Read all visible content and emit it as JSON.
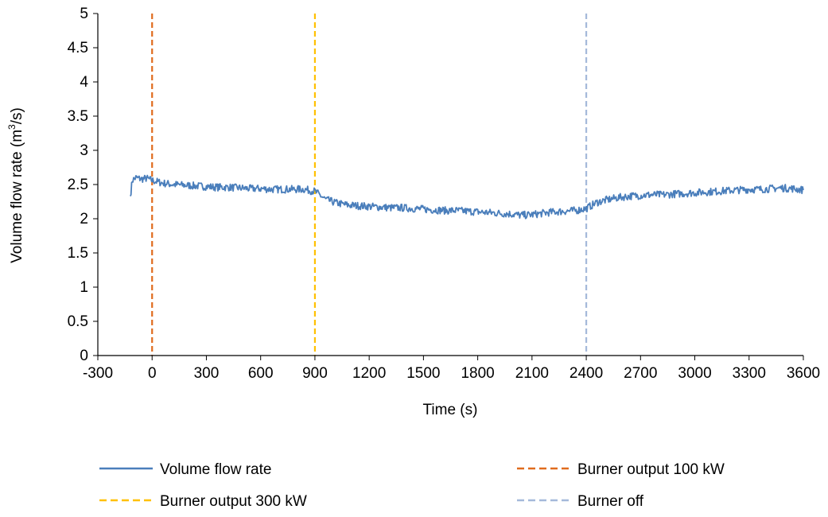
{
  "chart_data": {
    "type": "line",
    "xlabel": "Time (s)",
    "ylabel_prefix": "Volume flow rate (m",
    "ylabel_sup": "3",
    "ylabel_suffix": "/s)",
    "xlim": [
      -300,
      3600
    ],
    "ylim": [
      0,
      5
    ],
    "x_ticks": [
      -300,
      0,
      300,
      600,
      900,
      1200,
      1500,
      1800,
      2100,
      2400,
      2700,
      3000,
      3300,
      3600
    ],
    "y_ticks": [
      "0",
      "0.5",
      "1",
      "1.5",
      "2",
      "2.5",
      "3",
      "3.5",
      "4",
      "4.5",
      "5"
    ],
    "grid": false,
    "legend_position": "bottom",
    "series": [
      {
        "name": "Volume flow rate",
        "color": "#4a7ebb",
        "points": [
          [
            -120,
            2.33
          ],
          [
            -110,
            2.56
          ],
          [
            -90,
            2.6
          ],
          [
            -60,
            2.58
          ],
          [
            -30,
            2.59
          ],
          [
            0,
            2.56
          ],
          [
            60,
            2.52
          ],
          [
            120,
            2.5
          ],
          [
            180,
            2.49
          ],
          [
            240,
            2.48
          ],
          [
            300,
            2.47
          ],
          [
            360,
            2.46
          ],
          [
            420,
            2.46
          ],
          [
            480,
            2.45
          ],
          [
            540,
            2.44
          ],
          [
            600,
            2.44
          ],
          [
            660,
            2.43
          ],
          [
            720,
            2.43
          ],
          [
            780,
            2.43
          ],
          [
            840,
            2.43
          ],
          [
            900,
            2.4
          ],
          [
            960,
            2.28
          ],
          [
            1020,
            2.23
          ],
          [
            1080,
            2.2
          ],
          [
            1140,
            2.19
          ],
          [
            1200,
            2.18
          ],
          [
            1260,
            2.17
          ],
          [
            1320,
            2.16
          ],
          [
            1380,
            2.16
          ],
          [
            1440,
            2.15
          ],
          [
            1500,
            2.14
          ],
          [
            1560,
            2.13
          ],
          [
            1620,
            2.12
          ],
          [
            1680,
            2.12
          ],
          [
            1740,
            2.11
          ],
          [
            1800,
            2.1
          ],
          [
            1860,
            2.09
          ],
          [
            1920,
            2.08
          ],
          [
            1980,
            2.07
          ],
          [
            2040,
            2.05
          ],
          [
            2100,
            2.06
          ],
          [
            2160,
            2.08
          ],
          [
            2220,
            2.1
          ],
          [
            2280,
            2.11
          ],
          [
            2340,
            2.12
          ],
          [
            2400,
            2.15
          ],
          [
            2460,
            2.24
          ],
          [
            2520,
            2.28
          ],
          [
            2580,
            2.31
          ],
          [
            2640,
            2.33
          ],
          [
            2700,
            2.34
          ],
          [
            2760,
            2.35
          ],
          [
            2820,
            2.35
          ],
          [
            2880,
            2.36
          ],
          [
            2940,
            2.37
          ],
          [
            3000,
            2.38
          ],
          [
            3060,
            2.39
          ],
          [
            3120,
            2.4
          ],
          [
            3180,
            2.41
          ],
          [
            3240,
            2.42
          ],
          [
            3300,
            2.43
          ],
          [
            3360,
            2.43
          ],
          [
            3420,
            2.44
          ],
          [
            3480,
            2.45
          ],
          [
            3540,
            2.44
          ],
          [
            3600,
            2.42
          ]
        ]
      }
    ],
    "markers": [
      {
        "name": "Burner output 100 kW",
        "x": 0,
        "color": "#e06c1e"
      },
      {
        "name": "Burner output 300 kW",
        "x": 900,
        "color": "#ffc000"
      },
      {
        "name": "Burner off",
        "x": 2400,
        "color": "#a5b9da"
      }
    ],
    "noise_amplitude": 0.055
  }
}
